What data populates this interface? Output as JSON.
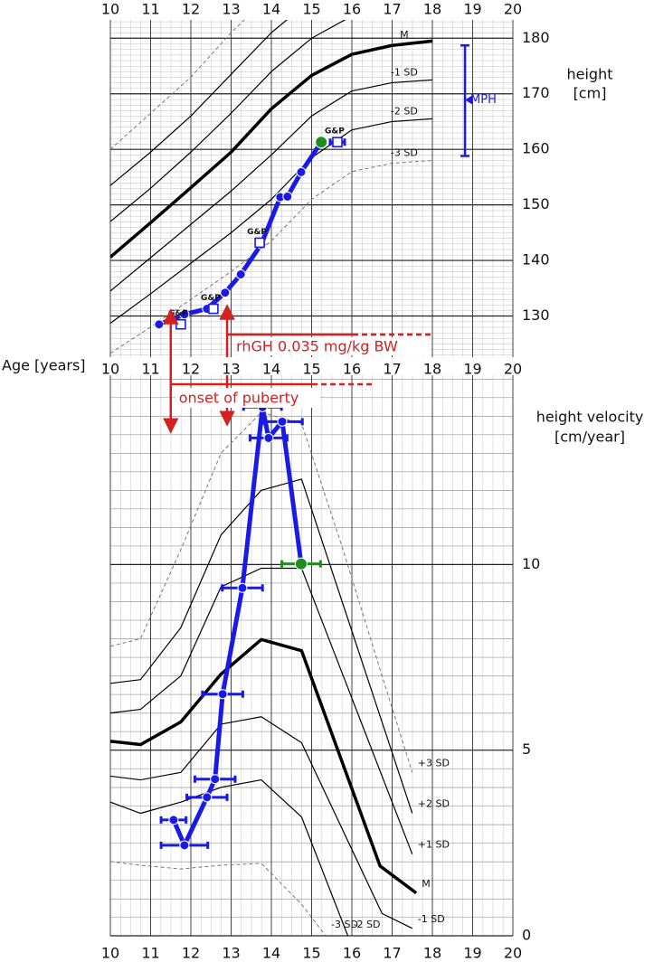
{
  "chart_data": [
    {
      "type": "line",
      "x_label": "Age [years]",
      "y_label": [
        "height",
        "[cm]"
      ],
      "xlim": [
        10,
        20
      ],
      "xticks": [
        10,
        11,
        12,
        13,
        14,
        15,
        16,
        17,
        18,
        19,
        20
      ],
      "ylim": [
        122.6,
        183.3
      ],
      "yticks": [
        130,
        140,
        150,
        160,
        170,
        180
      ],
      "grid": true,
      "series": [
        {
          "name": "M",
          "x": [
            10,
            11,
            12,
            13,
            14,
            15,
            16,
            17,
            18
          ],
          "values": [
            140.6,
            146.8,
            153.1,
            159.5,
            167.3,
            173.3,
            177.1,
            178.7,
            179.5
          ],
          "color": "#000000",
          "line_width": 3.5,
          "dashed": false
        },
        {
          "x": [
            10,
            11,
            12,
            13,
            14,
            15,
            16,
            17,
            18
          ],
          "values": [
            147,
            153,
            159.5,
            166.5,
            174,
            180,
            184,
            185.5,
            186
          ],
          "color": "#000000",
          "line_width": 1.2,
          "dashed": false
        },
        {
          "x": [
            10,
            11,
            12,
            13,
            14,
            15,
            16
          ],
          "values": [
            153.5,
            159.5,
            166,
            173.5,
            181,
            187,
            191
          ],
          "color": "#000000",
          "line_width": 1.2,
          "dashed": false
        },
        {
          "x": [
            10,
            11,
            12,
            13,
            14
          ],
          "values": [
            160,
            166.5,
            173,
            181,
            188
          ],
          "color": "#777777",
          "line_width": 1,
          "dashed": true
        },
        {
          "name": "-1 SD",
          "x": [
            10,
            11,
            12,
            13,
            14,
            15,
            16,
            17,
            18
          ],
          "values": [
            134.5,
            140.5,
            146.5,
            152.5,
            159,
            166,
            170.5,
            172,
            172.5
          ],
          "color": "#000000",
          "line_width": 1.2,
          "dashed": false
        },
        {
          "name": "-2 SD",
          "x": [
            10,
            11,
            12,
            13,
            14,
            15,
            16,
            17,
            18
          ],
          "values": [
            128.7,
            134,
            139.5,
            145,
            151,
            158.5,
            163.5,
            165,
            165.5
          ],
          "color": "#000000",
          "line_width": 1.2,
          "dashed": false
        },
        {
          "name": "-3 SD",
          "x": [
            10,
            11,
            12,
            13,
            14,
            15,
            16,
            17,
            18
          ],
          "values": [
            123.3,
            128,
            133,
            138,
            143.5,
            151,
            156,
            157.5,
            158
          ],
          "color": "#777777",
          "line_width": 1,
          "dashed": true
        },
        {
          "x": [
            11.21,
            11.84,
            12.4,
            12.85,
            13.24,
            13.75,
            14.22,
            14.4,
            14.74,
            15.24
          ],
          "values": [
            128.5,
            130.3,
            131.3,
            134.2,
            137.5,
            142.9,
            151.4,
            151.5,
            155.9,
            161.3
          ],
          "color": "#1a1ae6",
          "line_width": 5,
          "dashed": false,
          "marker": "circle",
          "marker_colors": [
            "#1a1ae6",
            "#1a1ae6",
            "#1a1ae6",
            "#1a1ae6",
            "#1a1ae6",
            "#1a1ae6",
            "#1a1ae6",
            "#1a1ae6",
            "#1a1ae6",
            "#1e8c1e"
          ]
        },
        {
          "x": [
            11.75,
            12.56,
            13.71,
            15.64
          ],
          "values": [
            128.5,
            131.3,
            143.2,
            161.3
          ],
          "xerr": [
            null,
            null,
            null,
            0.18
          ],
          "color": "#1a1ae6",
          "line_width": 0,
          "marker": "square",
          "point_labels": [
            "G&P",
            "G&P",
            "G&P",
            "G&P"
          ]
        }
      ],
      "mph": {
        "label": "MPH",
        "x": 18.81,
        "value": 168.9,
        "low": 158.8,
        "high": 178.7,
        "color": "#1a1ae6"
      }
    },
    {
      "type": "line",
      "y_label": [
        "height velocity",
        "[cm/year]"
      ],
      "xlim": [
        10,
        20
      ],
      "xticks": [
        10,
        11,
        12,
        13,
        14,
        15,
        16,
        17,
        18,
        19,
        20
      ],
      "ylim": [
        0,
        15.1
      ],
      "yticks": [
        0,
        5,
        10
      ],
      "grid": true,
      "series": [
        {
          "name": "+3 SD",
          "x": [
            10,
            10.75,
            11.75,
            12.75,
            13.75,
            14.75,
            15.75,
            16.75,
            17.5
          ],
          "values": [
            7.8,
            8.0,
            10.4,
            13.0,
            14.1,
            13.8,
            10.5,
            7.0,
            4.4
          ],
          "color": "#777777",
          "line_width": 1,
          "dashed": true
        },
        {
          "name": "+2 SD",
          "x": [
            10,
            10.75,
            11.75,
            12.75,
            13.75,
            14.75,
            17.5
          ],
          "values": [
            6.8,
            6.9,
            8.3,
            10.8,
            12.0,
            12.3,
            3.3
          ],
          "color": "#000000",
          "line_width": 1.2,
          "dashed": false
        },
        {
          "name": "+1 SD",
          "x": [
            10,
            10.75,
            11.75,
            12.75,
            13.75,
            14.75,
            17.5
          ],
          "values": [
            6.0,
            6.1,
            7.0,
            9.4,
            9.9,
            9.9,
            2.2
          ],
          "color": "#000000",
          "line_width": 1.2,
          "dashed": false
        },
        {
          "name": "M",
          "x": [
            10,
            10.75,
            11.75,
            12.75,
            13.75,
            14.75,
            16.7,
            17.6
          ],
          "values": [
            5.24,
            5.15,
            5.76,
            7.05,
            7.98,
            7.68,
            1.88,
            1.15
          ],
          "color": "#000000",
          "line_width": 3.5,
          "dashed": false
        },
        {
          "name": "-1 SD",
          "x": [
            10,
            10.75,
            11.75,
            12.75,
            13.75,
            14.75,
            16.75,
            17.5
          ],
          "values": [
            4.3,
            4.2,
            4.4,
            5.7,
            5.9,
            5.2,
            0.6,
            0.2
          ],
          "color": "#000000",
          "line_width": 1.2,
          "dashed": false
        },
        {
          "name": "-2 SD",
          "x": [
            10,
            10.75,
            11.75,
            12.75,
            13.75,
            14.75,
            15.9
          ],
          "values": [
            3.6,
            3.3,
            3.6,
            4.0,
            4.2,
            3.2,
            0
          ],
          "color": "#000000",
          "line_width": 1.2,
          "dashed": false
        },
        {
          "name": "-3 SD",
          "x": [
            10,
            10.75,
            11.75,
            12.75,
            13.75,
            14.75,
            15.35
          ],
          "values": [
            2.0,
            1.9,
            1.8,
            1.9,
            1.95,
            0.85,
            0
          ],
          "color": "#777777",
          "line_width": 1,
          "dashed": true
        },
        {
          "x": [
            11.57,
            11.84,
            12.4,
            12.6,
            12.79,
            13.28,
            13.78,
            13.93,
            14.27,
            14.74
          ],
          "values": [
            3.12,
            2.44,
            3.73,
            4.22,
            6.51,
            9.37,
            14.24,
            13.41,
            13.85,
            10.02
          ],
          "xerr": [
            0.31,
            0.58,
            0.5,
            0.5,
            0.5,
            0.5,
            0.47,
            0.46,
            0.5,
            0.48
          ],
          "color": "#1a1ae6",
          "line_width": 5,
          "dashed": false,
          "marker": "circle",
          "marker_colors": [
            "#1a1ae6",
            "#1a1ae6",
            "#1a1ae6",
            "#1a1ae6",
            "#1a1ae6",
            "#1a1ae6",
            "#1a1ae6",
            "#1a1ae6",
            "#1a1ae6",
            "#1e8c1e"
          ]
        }
      ]
    }
  ],
  "annotations": [
    {
      "text": "rhGH 0.035 mg/kg BW",
      "x": 12.9,
      "color": "#d42020"
    },
    {
      "text": "onset of puberty",
      "x": 11.5,
      "color": "#d42020"
    }
  ]
}
